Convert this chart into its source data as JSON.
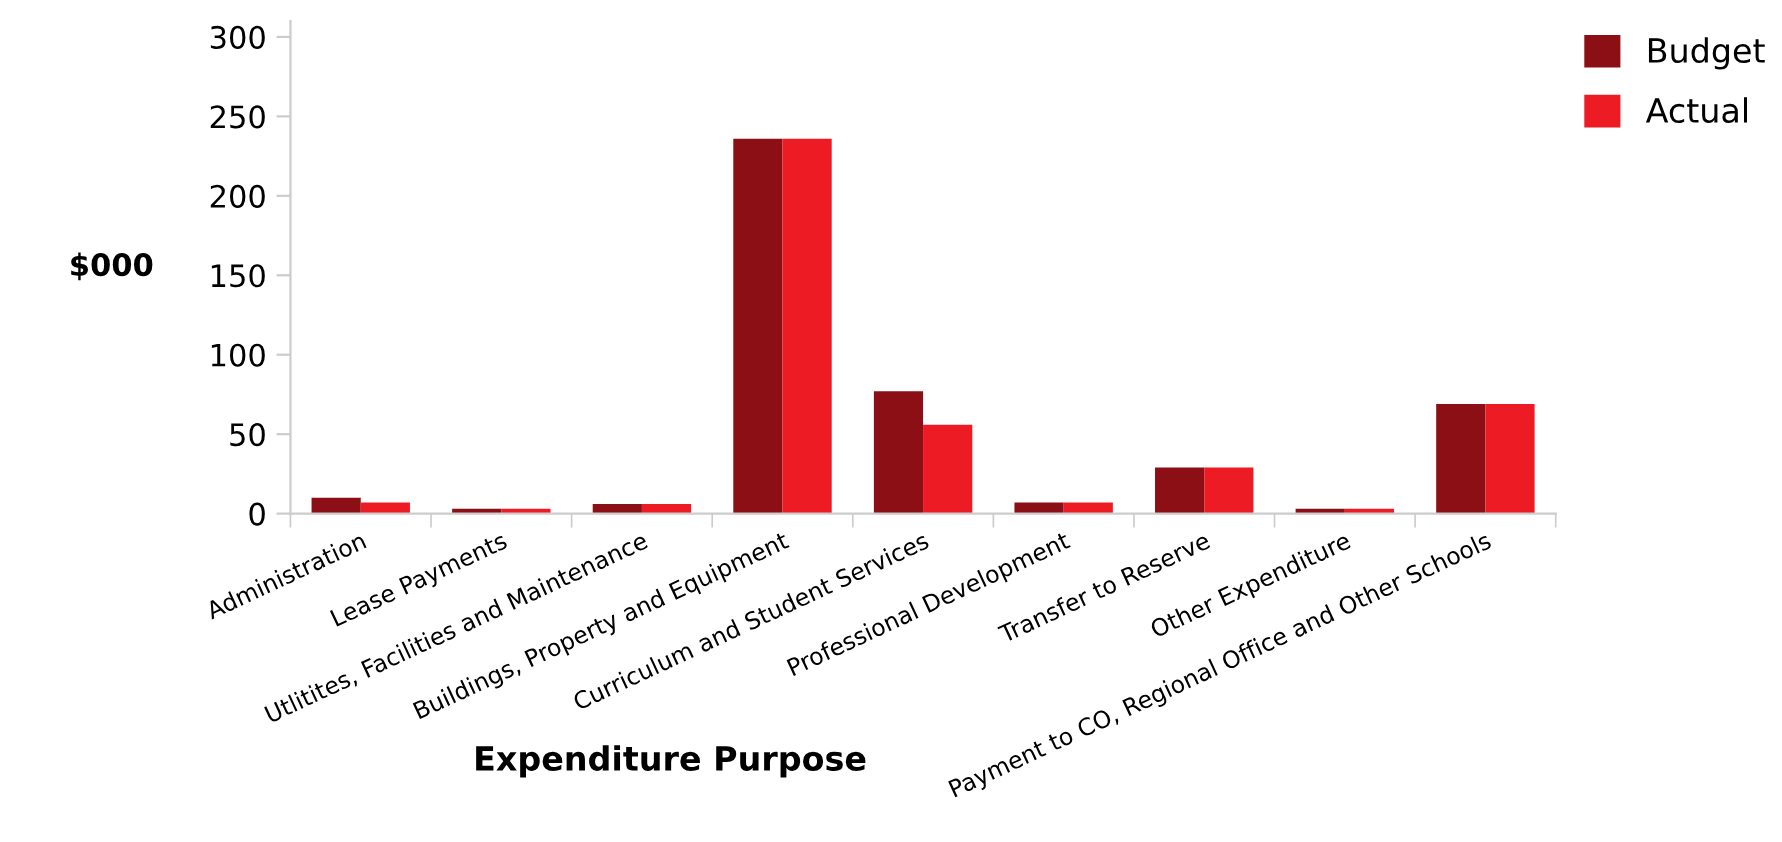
{
  "chart_data": {
    "type": "bar",
    "xlabel": "Expenditure Purpose",
    "ylabel": "$000",
    "categories": [
      "Administration",
      "Lease Payments",
      "Utlitites, Facilities and Maintenance",
      "Buildings, Property and Equipment",
      "Curriculum and Student Services",
      "Professional Development",
      "Transfer to Reserve",
      "Other Expenditure",
      "Payment to CO, Regional Office and Other Schools"
    ],
    "series": [
      {
        "name": "Budget",
        "color": "#8b0f14",
        "values": [
          10,
          3,
          6,
          236,
          77,
          7,
          29,
          3,
          69
        ]
      },
      {
        "name": "Actual",
        "color": "#ed1c24",
        "values": [
          7,
          3,
          6,
          236,
          56,
          7,
          29,
          3,
          69
        ]
      }
    ],
    "ylim": [
      0,
      310
    ],
    "yticks": [
      0,
      50,
      100,
      150,
      200,
      250,
      300
    ],
    "grid": false,
    "legend": "top right"
  }
}
